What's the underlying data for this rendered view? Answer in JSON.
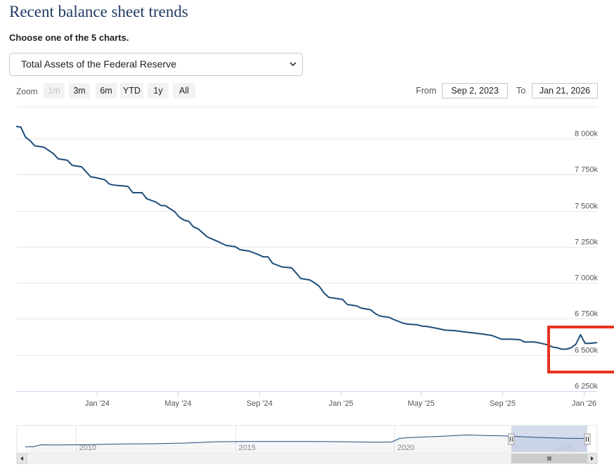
{
  "header": {
    "title": "Recent balance sheet trends",
    "chooser_label": "Choose one of the 5 charts."
  },
  "chart_select": {
    "selected": "Total Assets of the Federal Reserve",
    "chevron_icon": "chevron-down-icon"
  },
  "zoom": {
    "label": "Zoom",
    "buttons": [
      "1m",
      "3m",
      "6m",
      "YTD",
      "1y",
      "All"
    ],
    "disabled": "1m"
  },
  "range": {
    "from_label": "From",
    "from_value": "Sep 2, 2023",
    "to_label": "To",
    "to_value": "Jan 21, 2026"
  },
  "colors": {
    "line": "#1f4e7a",
    "highlight_box": "#e8321e",
    "navigator_selection": "#ccd6eb"
  },
  "chart_data": {
    "type": "line",
    "title": "",
    "xlabel": "",
    "ylabel": "",
    "y_ticks": [
      6250000,
      6500000,
      6750000,
      7000000,
      7250000,
      7500000,
      7750000,
      8000000
    ],
    "y_tick_labels": [
      "6 250k",
      "6 500k",
      "6 750k",
      "7 000k",
      "7 250k",
      "7 500k",
      "7 750k",
      "8 000k"
    ],
    "ylim": [
      6250000,
      8220000
    ],
    "xlim": [
      "2023-09-02",
      "2026-01-21"
    ],
    "x_ticks": [
      "2024-01-01",
      "2024-05-01",
      "2024-09-01",
      "2025-01-01",
      "2025-05-01",
      "2025-09-01",
      "2026-01-01"
    ],
    "x_tick_labels": [
      "Jan '24",
      "May '24",
      "Sep '24",
      "Jan '25",
      "May '25",
      "Sep '25",
      "Jan '26"
    ],
    "grid": true,
    "series": [
      {
        "values": [
          [
            "2023-09-02",
            8085000
          ],
          [
            "2023-09-09",
            8080000
          ],
          [
            "2023-09-16",
            8010000
          ],
          [
            "2023-09-23",
            7985000
          ],
          [
            "2023-09-30",
            7950000
          ],
          [
            "2023-10-14",
            7940000
          ],
          [
            "2023-10-28",
            7895000
          ],
          [
            "2023-11-04",
            7860000
          ],
          [
            "2023-11-18",
            7850000
          ],
          [
            "2023-11-25",
            7815000
          ],
          [
            "2023-12-09",
            7805000
          ],
          [
            "2023-12-16",
            7770000
          ],
          [
            "2023-12-23",
            7735000
          ],
          [
            "2023-12-30",
            7730000
          ],
          [
            "2024-01-13",
            7715000
          ],
          [
            "2024-01-20",
            7685000
          ],
          [
            "2024-01-27",
            7678000
          ],
          [
            "2024-02-10",
            7672000
          ],
          [
            "2024-02-17",
            7668000
          ],
          [
            "2024-02-24",
            7625000
          ],
          [
            "2024-03-09",
            7625000
          ],
          [
            "2024-03-16",
            7583000
          ],
          [
            "2024-03-30",
            7560000
          ],
          [
            "2024-04-06",
            7537000
          ],
          [
            "2024-04-13",
            7535000
          ],
          [
            "2024-04-27",
            7493000
          ],
          [
            "2024-05-04",
            7455000
          ],
          [
            "2024-05-11",
            7435000
          ],
          [
            "2024-05-18",
            7427000
          ],
          [
            "2024-05-25",
            7388000
          ],
          [
            "2024-06-01",
            7375000
          ],
          [
            "2024-06-15",
            7318000
          ],
          [
            "2024-06-22",
            7304000
          ],
          [
            "2024-06-29",
            7290000
          ],
          [
            "2024-07-13",
            7260000
          ],
          [
            "2024-07-27",
            7250000
          ],
          [
            "2024-08-03",
            7230000
          ],
          [
            "2024-08-17",
            7220000
          ],
          [
            "2024-08-31",
            7195000
          ],
          [
            "2024-09-07",
            7180000
          ],
          [
            "2024-09-14",
            7180000
          ],
          [
            "2024-09-21",
            7135000
          ],
          [
            "2024-10-05",
            7110000
          ],
          [
            "2024-10-19",
            7105000
          ],
          [
            "2024-10-26",
            7070000
          ],
          [
            "2024-11-02",
            7030000
          ],
          [
            "2024-11-16",
            7020000
          ],
          [
            "2024-11-23",
            7000000
          ],
          [
            "2024-11-30",
            6975000
          ],
          [
            "2024-12-07",
            6930000
          ],
          [
            "2024-12-14",
            6900000
          ],
          [
            "2024-12-28",
            6890000
          ],
          [
            "2025-01-04",
            6885000
          ],
          [
            "2025-01-11",
            6850000
          ],
          [
            "2025-01-25",
            6840000
          ],
          [
            "2025-02-01",
            6825000
          ],
          [
            "2025-02-15",
            6813000
          ],
          [
            "2025-02-22",
            6787000
          ],
          [
            "2025-03-01",
            6770000
          ],
          [
            "2025-03-15",
            6760000
          ],
          [
            "2025-03-22",
            6745000
          ],
          [
            "2025-04-05",
            6720000
          ],
          [
            "2025-04-12",
            6713000
          ],
          [
            "2025-04-26",
            6710000
          ],
          [
            "2025-05-03",
            6700000
          ],
          [
            "2025-05-10",
            6698000
          ],
          [
            "2025-05-24",
            6686000
          ],
          [
            "2025-06-07",
            6672000
          ],
          [
            "2025-06-21",
            6669000
          ],
          [
            "2025-07-05",
            6660000
          ],
          [
            "2025-07-19",
            6653000
          ],
          [
            "2025-08-02",
            6645000
          ],
          [
            "2025-08-16",
            6635000
          ],
          [
            "2025-08-30",
            6610000
          ],
          [
            "2025-09-13",
            6610000
          ],
          [
            "2025-09-27",
            6606000
          ],
          [
            "2025-10-04",
            6590000
          ],
          [
            "2025-10-18",
            6590000
          ],
          [
            "2025-10-25",
            6585000
          ],
          [
            "2025-11-08",
            6570000
          ],
          [
            "2025-11-15",
            6555000
          ],
          [
            "2025-11-22",
            6550000
          ],
          [
            "2025-11-29",
            6540000
          ],
          [
            "2025-12-06",
            6540000
          ],
          [
            "2025-12-13",
            6550000
          ],
          [
            "2025-12-20",
            6575000
          ],
          [
            "2025-12-27",
            6640000
          ],
          [
            "2026-01-03",
            6580000
          ],
          [
            "2026-01-10",
            6580000
          ],
          [
            "2026-01-17",
            6584000
          ],
          [
            "2026-01-21",
            6585000
          ]
        ]
      }
    ],
    "navigator": {
      "year_labels": [
        "2010",
        "2015",
        "2020",
        "2025"
      ],
      "series": [
        [
          "2008-06-01",
          0.9
        ],
        [
          "2008-09-01",
          0.9
        ],
        [
          "2008-12-01",
          2.2
        ],
        [
          "2009-06-01",
          2.1
        ],
        [
          "2010-06-01",
          2.3
        ],
        [
          "2011-06-01",
          2.8
        ],
        [
          "2012-06-01",
          2.9
        ],
        [
          "2013-06-01",
          3.4
        ],
        [
          "2014-06-01",
          4.3
        ],
        [
          "2015-06-01",
          4.5
        ],
        [
          "2016-06-01",
          4.5
        ],
        [
          "2017-06-01",
          4.5
        ],
        [
          "2018-06-01",
          4.3
        ],
        [
          "2019-06-01",
          3.9
        ],
        [
          "2019-12-01",
          4.1
        ],
        [
          "2020-03-01",
          6.6
        ],
        [
          "2020-06-01",
          7.1
        ],
        [
          "2021-06-01",
          8.0
        ],
        [
          "2022-04-01",
          8.96
        ],
        [
          "2022-12-01",
          8.6
        ],
        [
          "2023-06-01",
          8.4
        ],
        [
          "2024-06-01",
          7.3
        ],
        [
          "2025-06-01",
          6.7
        ],
        [
          "2026-01-21",
          6.59
        ]
      ],
      "selection": [
        "2023-09-02",
        "2026-01-21"
      ]
    }
  }
}
